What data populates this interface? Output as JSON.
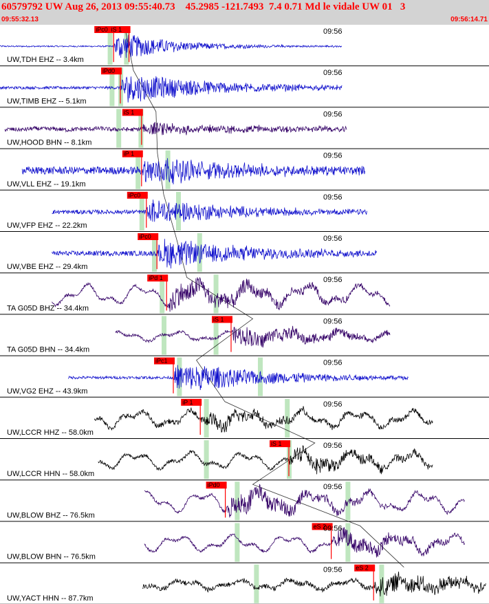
{
  "header": {
    "title": "60579792 UW Aug 26, 2013 09:55:40.73    45.2985 -121.7493  7.4 0.71 Md le vidale UW 01   3",
    "start_time": "09:55:32.13",
    "end_time": "09:56:14.71"
  },
  "colors": {
    "header_bg": "#d3d3d3",
    "header_text": "#ff0000",
    "pick_marker": "#ff0000",
    "pick_window": "#bfe6bf",
    "travel_curve": "#000000",
    "separator": "#000000"
  },
  "chart_data": {
    "type": "line",
    "title": "60579792 UW Aug 26, 2013 09:55:40.73    45.2985 -121.7493  7.4 0.71 Md le vidale UW 01   3",
    "x_axis": {
      "start": "09:55:32.13",
      "end": "09:56:14.71",
      "start_s": 0,
      "end_s": 42.58
    },
    "time_label": "09:56",
    "traces": [
      {
        "label": "UW,TDH EHZ -- 3.4km",
        "color": "#1010cc",
        "t_start": 0.0,
        "t_end": 35.5,
        "noise": 0.04,
        "burst": 0.9,
        "decay": 6,
        "wander": 0,
        "dense": 1.0,
        "picks": [
          {
            "label": "iPc0",
            "t": 11.8
          },
          {
            "label": "iS 1",
            "t": 13.4
          }
        ],
        "windows": [
          11.4,
          13.1
        ]
      },
      {
        "label": "UW,TIMB EHZ -- 5.1km",
        "color": "#1010cc",
        "t_start": 0.0,
        "t_end": 35.5,
        "noise": 0.08,
        "burst": 0.9,
        "decay": 10,
        "wander": 0,
        "dense": 1.0,
        "picks": [
          {
            "label": "iPd0",
            "t": 12.5
          }
        ],
        "windows": [
          11.6,
          12.5
        ]
      },
      {
        "label": "UW,HOOD BHN -- 8.1km",
        "color": "#330066",
        "t_start": 0.5,
        "t_end": 36.0,
        "noise": 0.12,
        "burst": 0.35,
        "decay": 12,
        "wander": 0.05,
        "dense": 1.0,
        "picks": [
          {
            "label": "iS 1",
            "t": 14.7
          }
        ],
        "windows": [
          12.3,
          14.6
        ]
      },
      {
        "label": "UW,VLL EHZ -- 19.1km",
        "color": "#1010cc",
        "t_start": 2.3,
        "t_end": 37.9,
        "noise": 0.22,
        "burst": 0.9,
        "decay": 9,
        "wander": 0,
        "dense": 1.0,
        "picks": [
          {
            "label": "iP 1",
            "t": 14.7
          }
        ],
        "windows": [
          14.3,
          17.4
        ]
      },
      {
        "label": "UW,VFP EHZ -- 22.2km",
        "color": "#1010cc",
        "t_start": 5.4,
        "t_end": 38.1,
        "noise": 0.12,
        "burst": 0.8,
        "decay": 9,
        "wander": 0,
        "dense": 1.0,
        "picks": [
          {
            "label": "iPc0",
            "t": 15.2
          }
        ],
        "windows": [
          14.7,
          18.5
        ]
      },
      {
        "label": "UW,VBE EHZ -- 29.4km",
        "color": "#1010cc",
        "t_start": 5.4,
        "t_end": 39.1,
        "noise": 0.14,
        "burst": 0.9,
        "decay": 10,
        "wander": 0,
        "dense": 1.0,
        "picks": [
          {
            "label": "iPc0",
            "t": 16.3
          }
        ],
        "windows": [
          16.0,
          20.7
        ]
      },
      {
        "label": "TA G05D BHZ -- 34.4km",
        "color": "#330066",
        "t_start": 5.4,
        "t_end": 40.5,
        "noise": 0.08,
        "burst": 0.7,
        "decay": 12,
        "wander": 0.75,
        "dense": 1.0,
        "picks": [
          {
            "label": "iPd 1",
            "t": 17.3
          }
        ],
        "windows": [
          16.8,
          22.4
        ]
      },
      {
        "label": "TA G05D BHN -- 34.4km",
        "color": "#330066",
        "t_start": 12.0,
        "t_end": 40.5,
        "noise": 0.08,
        "burst": 0.6,
        "decay": 10,
        "wander": 0.35,
        "dense": 1.0,
        "picks": [
          {
            "label": "iS 1",
            "t": 24.0
          }
        ],
        "windows": [
          17.0,
          22.4
        ]
      },
      {
        "label": "UW,VG2 EHZ -- 43.9km",
        "color": "#1010cc",
        "t_start": 7.1,
        "t_end": 42.4,
        "noise": 0.08,
        "burst": 0.9,
        "decay": 10,
        "wander": 0,
        "dense": 1.0,
        "picks": [
          {
            "label": "iPc1",
            "t": 18.0
          }
        ],
        "windows": [
          18.6,
          27.0
        ]
      },
      {
        "label": "UW,LCCR HHZ -- 58.0km",
        "color": "#000000",
        "t_start": 9.8,
        "t_end": 45.0,
        "noise": 0.14,
        "burst": 0.5,
        "decay": 8,
        "wander": 0.6,
        "dense": 1.0,
        "picks": [
          {
            "label": "iP 1",
            "t": 20.8
          }
        ],
        "windows": [
          21.4,
          29.8
        ]
      },
      {
        "label": "UW,LCCR HHN -- 58.0km",
        "color": "#000000",
        "t_start": 10.2,
        "t_end": 45.0,
        "noise": 0.1,
        "burst": 0.6,
        "decay": 9,
        "wander": 0.6,
        "dense": 1.0,
        "picks": [
          {
            "label": "iS 1",
            "t": 30.0
          }
        ],
        "windows": [
          21.4,
          30.0
        ]
      },
      {
        "label": "UW,BLOW BHZ -- 76.5km",
        "color": "#330066",
        "t_start": 15.0,
        "t_end": 48.3,
        "noise": 0.08,
        "burst": 0.7,
        "decay": 10,
        "wander": 0.75,
        "dense": 1.0,
        "picks": [
          {
            "label": "iPd0",
            "t": 23.4
          }
        ],
        "windows": [
          24.6,
          36.1
        ]
      },
      {
        "label": "UW,BLOW BHN -- 76.5km",
        "color": "#330066",
        "t_start": 15.0,
        "t_end": 48.3,
        "noise": 0.08,
        "burst": 0.6,
        "decay": 10,
        "wander": 0.6,
        "dense": 1.0,
        "picks": [
          {
            "label": "eS 2",
            "t": 34.4
          }
        ],
        "windows": [
          24.6,
          36.1
        ]
      },
      {
        "label": "UW,YACT HHN -- 87.7km",
        "color": "#000000",
        "t_start": 14.8,
        "t_end": 50.5,
        "noise": 0.14,
        "burst": 0.6,
        "decay": 12,
        "wander": 0.35,
        "dense": 1.0,
        "picks": [
          {
            "label": "eS 2",
            "t": 38.8
          }
        ],
        "windows": [
          26.6,
          39.6
        ]
      }
    ]
  }
}
